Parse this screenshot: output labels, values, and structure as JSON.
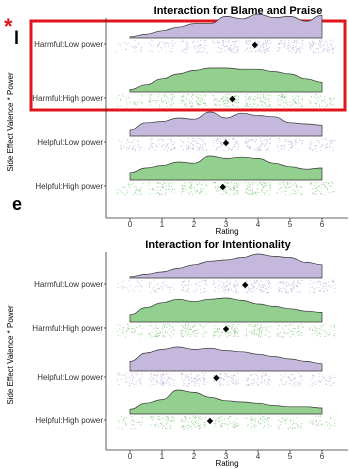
{
  "overlay": {
    "star": "*",
    "fragment_top": "l",
    "fragment_bottom": "e",
    "highlight_color": "#e0151b"
  },
  "colors": {
    "low_power": "#c5b8dd",
    "high_power": "#93d08f",
    "mean_marker": "#000000",
    "axis": "#333333"
  },
  "chart_data": [
    {
      "type": "raincloud",
      "title": "Interaction for Blame and Praise",
      "xlabel": "Rating",
      "ylabel": "Side Effect Valence * Power",
      "xlim": [
        -0.5,
        6.5
      ],
      "xticks": [
        0,
        1,
        2,
        3,
        4,
        5,
        6
      ],
      "categories": [
        "Harmful:Low power",
        "Harmful:High power",
        "Helpful:Low power",
        "Helpful:High power"
      ],
      "series": [
        {
          "name": "Harmful:Low power",
          "power": "low",
          "mean": 3.9,
          "density": [
            0.05,
            0.15,
            0.3,
            0.45,
            0.6,
            0.6,
            0.9,
            0.8,
            1.0,
            0.85,
            0.9,
            0.7,
            0.95
          ]
        },
        {
          "name": "Harmful:High power",
          "power": "high",
          "mean": 3.2,
          "density": [
            0.1,
            0.3,
            0.55,
            0.75,
            0.9,
            1.0,
            1.0,
            0.95,
            0.95,
            0.85,
            0.75,
            0.55,
            0.4
          ]
        },
        {
          "name": "Helpful:Low power",
          "power": "low",
          "mean": 3.0,
          "density": [
            0.25,
            0.55,
            0.6,
            0.75,
            0.7,
            1.0,
            0.75,
            0.95,
            0.85,
            0.8,
            0.55,
            0.5,
            0.45
          ]
        },
        {
          "name": "Helpful:High power",
          "power": "high",
          "mean": 2.9,
          "density": [
            0.3,
            0.5,
            0.6,
            0.75,
            0.7,
            1.0,
            0.9,
            0.95,
            0.9,
            0.7,
            0.55,
            0.45,
            0.5
          ]
        }
      ],
      "highlight": "Harmful rows"
    },
    {
      "type": "raincloud",
      "title": "Interaction for Intentionality",
      "xlabel": "Rating",
      "ylabel": "Side Effect Valence * Power",
      "xlim": [
        -0.5,
        6.5
      ],
      "xticks": [
        0,
        1,
        2,
        3,
        4,
        5,
        6
      ],
      "categories": [
        "Harmful:Low power",
        "Harmful:High power",
        "Helpful:Low power",
        "Helpful:High power"
      ],
      "series": [
        {
          "name": "Harmful:Low power",
          "power": "low",
          "mean": 3.6,
          "density": [
            0.05,
            0.15,
            0.25,
            0.4,
            0.55,
            0.7,
            0.75,
            0.85,
            1.0,
            0.9,
            0.85,
            0.65,
            0.55
          ]
        },
        {
          "name": "Harmful:High power",
          "power": "high",
          "mean": 3.0,
          "density": [
            0.3,
            0.6,
            0.8,
            0.95,
            0.85,
            0.95,
            1.0,
            0.9,
            0.75,
            0.65,
            0.55,
            0.45,
            0.4
          ]
        },
        {
          "name": "Helpful:Low power",
          "power": "low",
          "mean": 2.7,
          "density": [
            0.4,
            0.75,
            0.9,
            1.0,
            0.9,
            0.95,
            0.85,
            0.8,
            0.7,
            0.6,
            0.5,
            0.4,
            0.3
          ]
        },
        {
          "name": "Helpful:High power",
          "power": "high",
          "mean": 2.5,
          "density": [
            0.2,
            0.45,
            0.6,
            1.0,
            0.9,
            0.7,
            0.55,
            0.5,
            0.45,
            0.35,
            0.3,
            0.3,
            0.25
          ]
        }
      ]
    }
  ]
}
